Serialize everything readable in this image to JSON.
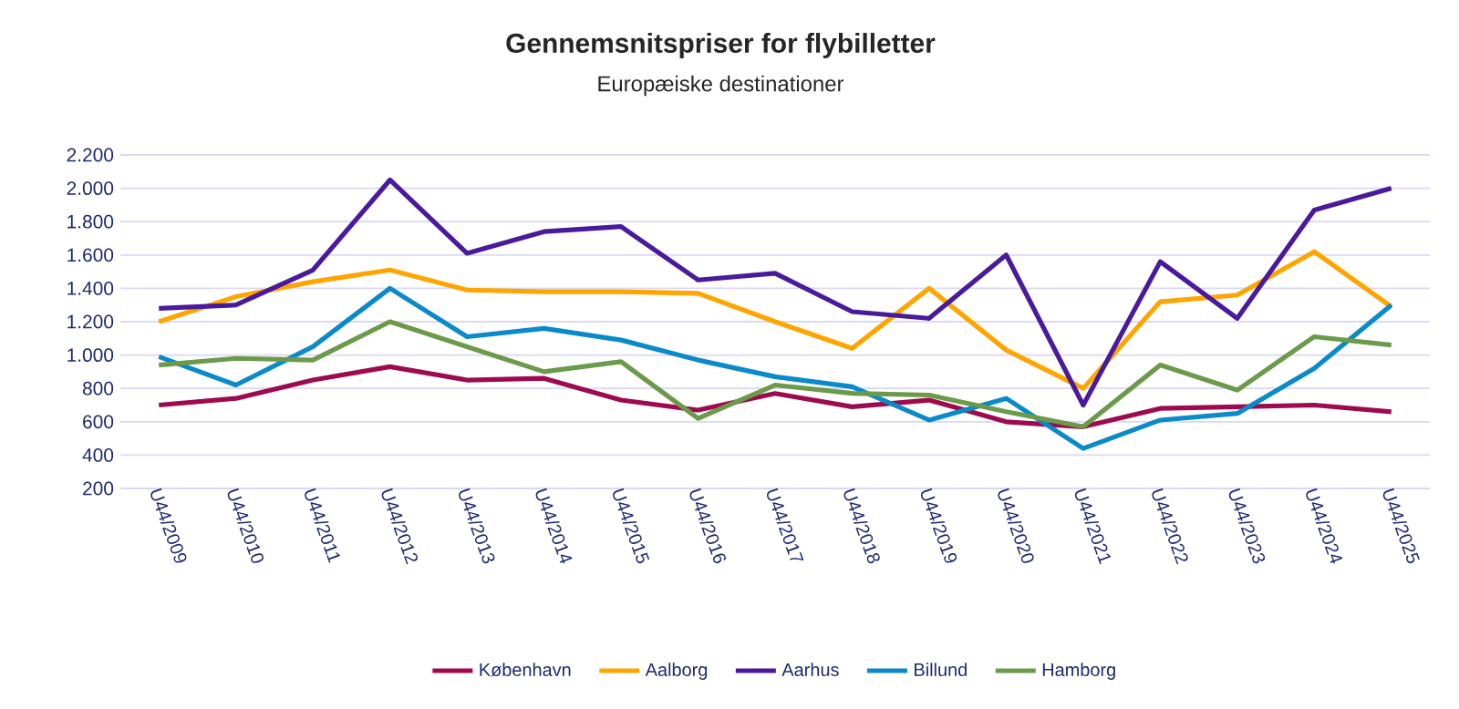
{
  "chart_data": {
    "type": "line",
    "title": "Gennemsnitspriser for flybilletter",
    "subtitle": "Europæiske destinationer",
    "categories": [
      "U44/2009",
      "U44/2010",
      "U44/2011",
      "U44/2012",
      "U44/2013",
      "U44/2014",
      "U44/2015",
      "U44/2016",
      "U44/2017",
      "U44/2018",
      "U44/2019",
      "U44/2020",
      "U44/2021",
      "U44/2022",
      "U44/2023",
      "U44/2024",
      "U44/2025"
    ],
    "series": [
      {
        "name": "København",
        "color": "#9e0a4e",
        "values": [
          700,
          740,
          850,
          930,
          850,
          860,
          730,
          670,
          770,
          690,
          730,
          600,
          570,
          680,
          690,
          700,
          660
        ]
      },
      {
        "name": "Aalborg",
        "color": "#ffa500",
        "values": [
          1200,
          1350,
          1440,
          1510,
          1390,
          1380,
          1380,
          1370,
          1200,
          1040,
          1400,
          1030,
          800,
          1320,
          1360,
          1620,
          1290
        ]
      },
      {
        "name": "Aarhus",
        "color": "#4a1a9c",
        "values": [
          1280,
          1300,
          1510,
          2050,
          1610,
          1740,
          1770,
          1450,
          1490,
          1260,
          1220,
          1600,
          700,
          1560,
          1220,
          1870,
          2000
        ]
      },
      {
        "name": "Billund",
        "color": "#0a8ac8",
        "values": [
          990,
          820,
          1050,
          1400,
          1110,
          1160,
          1090,
          970,
          870,
          810,
          610,
          740,
          440,
          610,
          650,
          920,
          1300
        ]
      },
      {
        "name": "Hamborg",
        "color": "#6b9a4a",
        "values": [
          940,
          980,
          970,
          1200,
          1050,
          900,
          960,
          620,
          820,
          770,
          760,
          660,
          570,
          940,
          790,
          1110,
          1060
        ]
      }
    ],
    "ylim": [
      200,
      2200
    ],
    "yticks": [
      200,
      400,
      600,
      800,
      {
        "value": 1000,
        "label": "1.000"
      },
      {
        "value": 1200,
        "label": "1.200"
      },
      {
        "value": 1400,
        "label": "1.400"
      },
      {
        "value": 1600,
        "label": "1.600"
      },
      {
        "value": 1800,
        "label": "1.800"
      },
      {
        "value": 2000,
        "label": "2.000"
      },
      {
        "value": 2200,
        "label": "2.200"
      }
    ],
    "grid": "y",
    "legend": "bottom"
  }
}
